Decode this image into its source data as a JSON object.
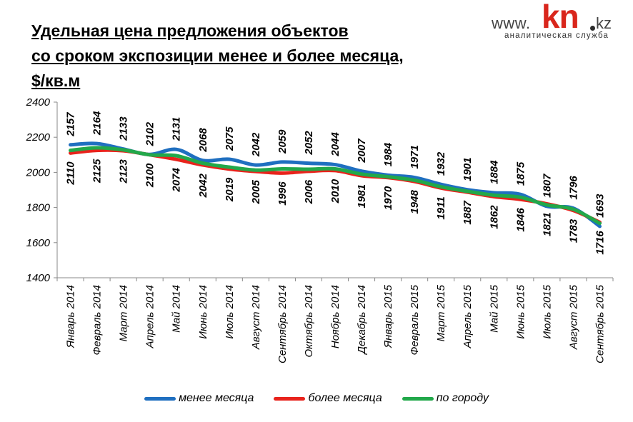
{
  "title_lines": [
    "Удельная цена предложения  объектов",
    "со сроком экспозиции менее и более месяца,",
    "$/кв.м"
  ],
  "logo": {
    "www": "www.",
    "kn": "kn",
    "kz": "kz",
    "subtitle": "аналитическая служба"
  },
  "colors": {
    "менее месяца": "#1f6fc0",
    "более месяца": "#e8231c",
    "по городу": "#22a84a"
  },
  "chart_data": {
    "type": "line",
    "categories": [
      "Январь 2014",
      "Февраль 2014",
      "Март 2014",
      "Апрель 2014",
      "Май 2014",
      "Июнь 2014",
      "Июль 2014",
      "Август 2014",
      "Сентябрь 2014",
      "Октябрь 2014",
      "Ноябрь 2014",
      "Декабрь 2014",
      "Январь 2015",
      "Февраль 2015",
      "Март 2015",
      "Апрель 2015",
      "Май 2015",
      "Июнь 2015",
      "Июль 2015",
      "Август 2015",
      "Сентябрь 2015"
    ],
    "series": [
      {
        "name": "менее месяца",
        "values": [
          2157,
          2164,
          2133,
          2102,
          2131,
          2068,
          2075,
          2042,
          2059,
          2052,
          2044,
          2007,
          1984,
          1971,
          1932,
          1901,
          1884,
          1875,
          1807,
          1796,
          1693
        ]
      },
      {
        "name": "более месяца",
        "values": [
          2110,
          2125,
          2123,
          2100,
          2074,
          2042,
          2019,
          2005,
          1996,
          2006,
          2010,
          1981,
          1970,
          1948,
          1911,
          1887,
          1862,
          1846,
          1821,
          1783,
          1716
        ]
      },
      {
        "name": "по городу",
        "values": [
          2125,
          2140,
          2128,
          2100,
          2095,
          2052,
          2030,
          2013,
          2020,
          2018,
          2020,
          1990,
          1975,
          1955,
          1918,
          1892,
          1870,
          1858,
          1815,
          1790,
          1710
        ]
      }
    ],
    "data_labels": {
      "above": "менее месяца",
      "below": "более месяца"
    },
    "ylim": [
      1400,
      2400
    ],
    "yticks": [
      1400,
      1600,
      1800,
      2000,
      2200,
      2400
    ],
    "grid": false,
    "legend_position": "bottom",
    "xlabel": "",
    "ylabel": ""
  }
}
